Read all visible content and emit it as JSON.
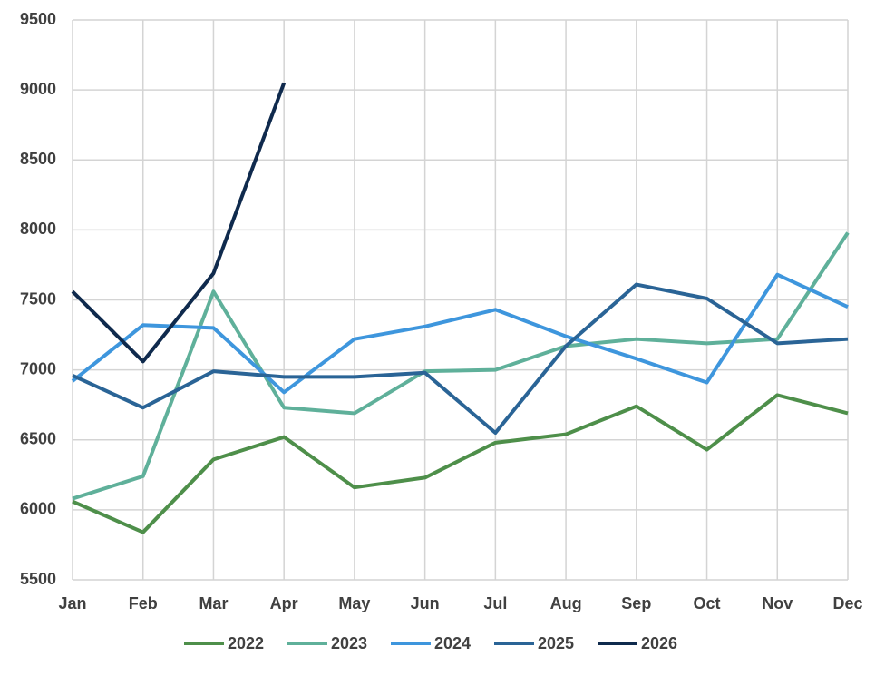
{
  "chart_data": {
    "type": "line",
    "categories": [
      "Jan",
      "Feb",
      "Mar",
      "Apr",
      "May",
      "Jun",
      "Jul",
      "Aug",
      "Sep",
      "Oct",
      "Nov",
      "Dec"
    ],
    "series": [
      {
        "name": "2022",
        "color": "#4e8f4a",
        "values": [
          6060,
          5840,
          6360,
          6520,
          6160,
          6230,
          6480,
          6540,
          6740,
          6430,
          6820,
          6690
        ]
      },
      {
        "name": "2023",
        "color": "#5fb09a",
        "values": [
          6080,
          6240,
          7560,
          6730,
          6690,
          6990,
          7000,
          7170,
          7220,
          7190,
          7220,
          7980
        ]
      },
      {
        "name": "2024",
        "color": "#3e96dd",
        "values": [
          6920,
          7320,
          7300,
          6840,
          7220,
          7310,
          7430,
          7240,
          7080,
          6910,
          7680,
          7450
        ]
      },
      {
        "name": "2025",
        "color": "#2a6496",
        "values": [
          6960,
          6730,
          6990,
          6950,
          6950,
          6980,
          6550,
          7170,
          7610,
          7510,
          7190,
          7220
        ]
      },
      {
        "name": "2026",
        "color": "#0f2a4d",
        "values": [
          7560,
          7060,
          7690,
          9050,
          null,
          null,
          null,
          null,
          null,
          null,
          null,
          null
        ]
      }
    ],
    "ylim": [
      5500,
      9500
    ],
    "yticks": [
      5500,
      6000,
      6500,
      7000,
      7500,
      8000,
      8500,
      9000,
      9500
    ],
    "grid": true,
    "legend": "bottom"
  }
}
